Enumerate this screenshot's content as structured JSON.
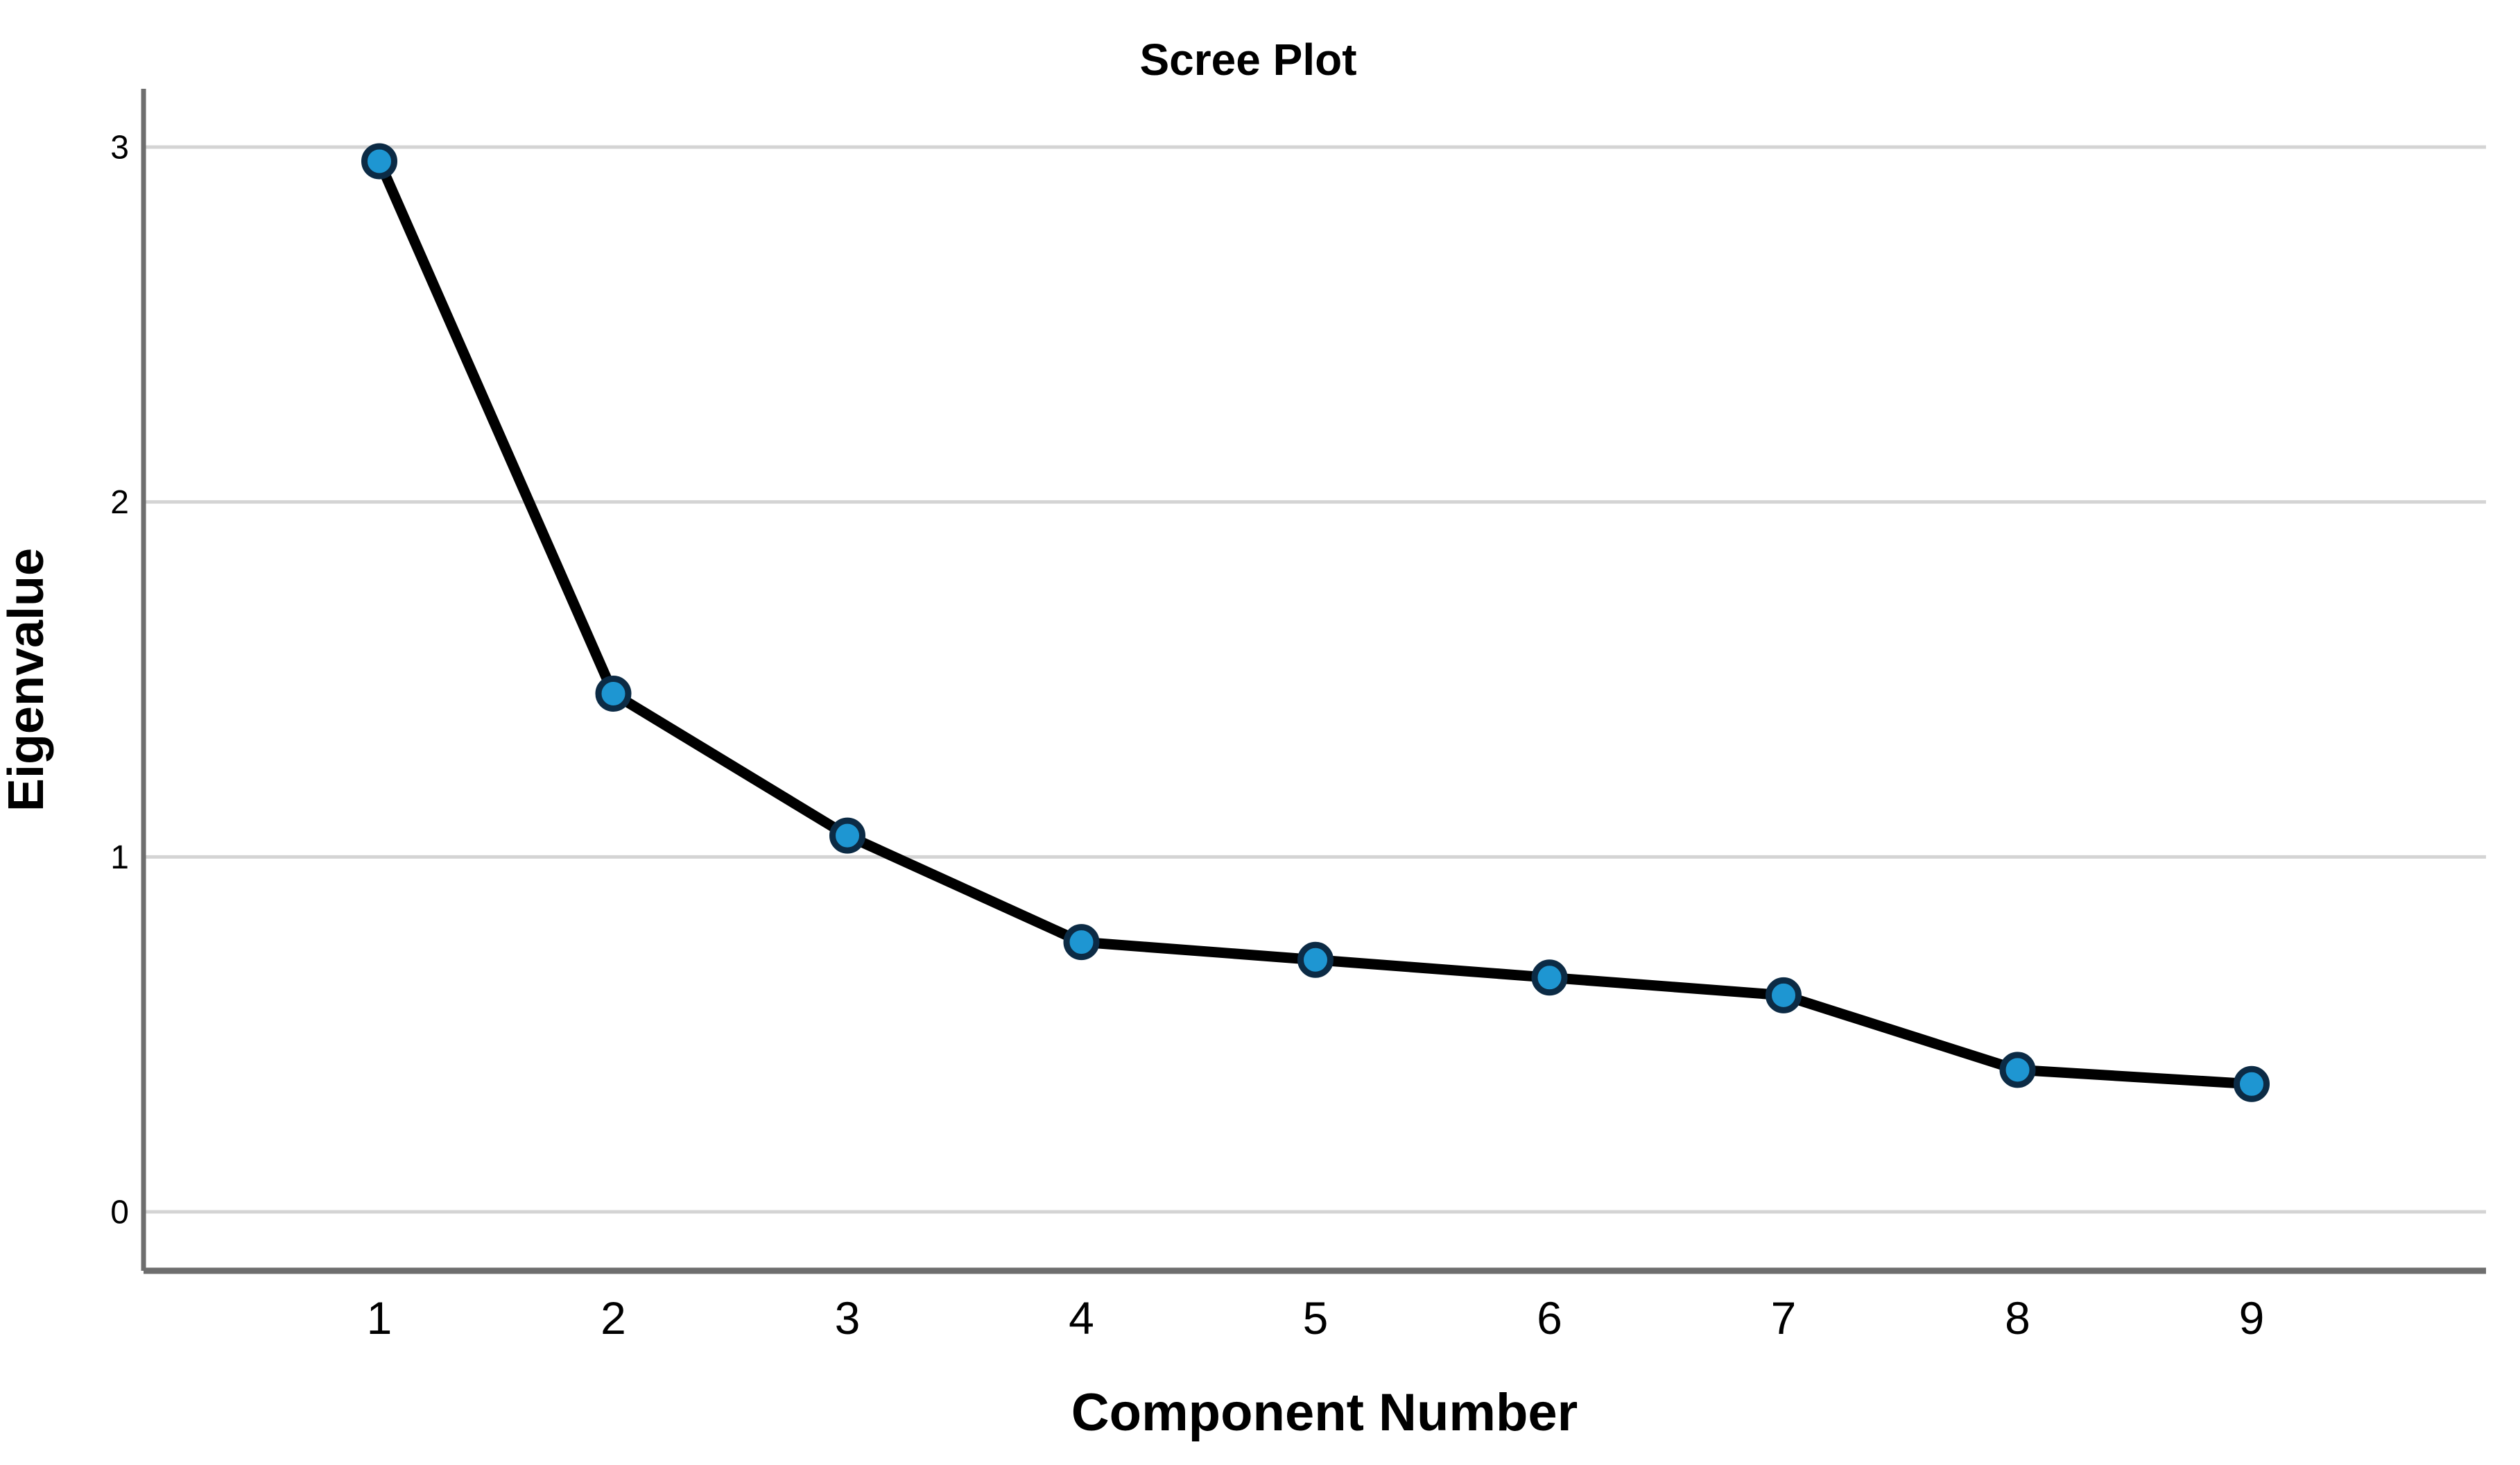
{
  "chart_data": {
    "type": "line",
    "title": "Scree Plot",
    "xlabel": "Component Number",
    "ylabel": "Eigenvalue",
    "series": [
      {
        "name": "Eigenvalue",
        "x": [
          1,
          2,
          3,
          4,
          5,
          6,
          7,
          8,
          9
        ],
        "values": [
          2.96,
          1.46,
          1.06,
          0.76,
          0.71,
          0.66,
          0.61,
          0.4,
          0.36
        ]
      }
    ],
    "xticks": [
      "1",
      "2",
      "3",
      "4",
      "5",
      "6",
      "7",
      "8",
      "9"
    ],
    "yticks": [
      0,
      1,
      2,
      3
    ],
    "ylim": [
      -0.17,
      3.16
    ],
    "grid": "horizontal",
    "legend": "none",
    "colors": {
      "line": "#000000",
      "marker_fill": "#1e96d2",
      "marker_stroke": "#0c2b45",
      "gridline": "#d4d4d4",
      "axis": "#6e6e6e",
      "text": "#000000",
      "background": "#ffffff"
    }
  }
}
